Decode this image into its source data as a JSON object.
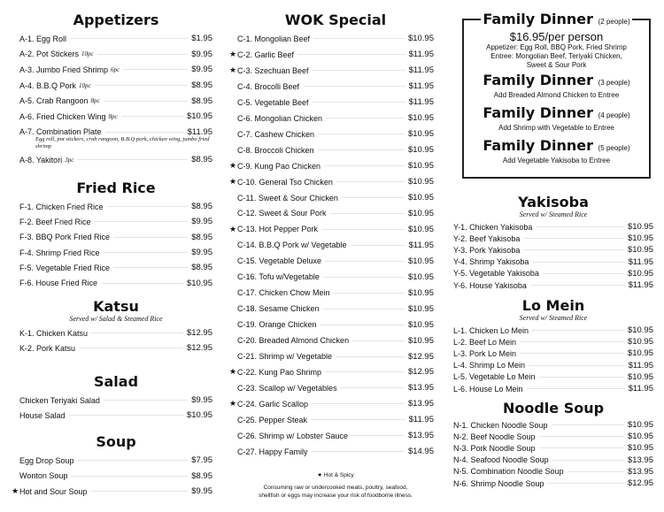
{
  "columns": [
    {
      "sections": [
        {
          "title": "Appetizers",
          "items": [
            {
              "name": "A-1. Egg Roll",
              "price": "$1.95"
            },
            {
              "name": "A-2. Pot Stickers",
              "note": "10pc",
              "price": "$9.95"
            },
            {
              "name": "A-3. Jumbo Fried Shrimp",
              "note": "6pc",
              "price": "$9.95"
            },
            {
              "name": "A-4. B.B.Q Pork",
              "note": "10pc",
              "price": "$8.95"
            },
            {
              "name": "A-5. Crab Rangoon",
              "note": "8pc",
              "price": "$8.95"
            },
            {
              "name": "A-6. Fried Chicken Wing",
              "note": "8pc",
              "price": "$10.95"
            },
            {
              "name": "A-7. Combination Plate",
              "price": "$11.95",
              "desc": "Egg roll, pot stickers, crab rangoon, B.B.Q pork, chicken wing, jumbo fried shrimp"
            },
            {
              "name": "A-8. Yakitori",
              "note": "3pc",
              "price": "$8.95"
            }
          ]
        },
        {
          "title": "Fried Rice",
          "items": [
            {
              "name": "F-1. Chicken Fried Rice",
              "price": "$8.95"
            },
            {
              "name": "F-2. Beef Fried Rice",
              "price": "$9.95"
            },
            {
              "name": "F-3. BBQ Pork Fried Rice",
              "price": "$8.95"
            },
            {
              "name": "F-4. Shrimp Fried Rice",
              "price": "$9.95"
            },
            {
              "name": "F-5. Vegetable Fried Rice",
              "price": "$8.95"
            },
            {
              "name": "F-6. House Fried Rice",
              "price": "$10.95"
            }
          ]
        },
        {
          "title": "Katsu",
          "subtitle": "Served w/ Salad & Steamed Rice",
          "items": [
            {
              "name": "K-1. Chicken Katsu",
              "price": "$12.95"
            },
            {
              "name": "K-2. Pork Katsu",
              "price": "$12.95"
            }
          ]
        },
        {
          "title": "Salad",
          "items": [
            {
              "name": "Chicken Teriyaki Salad",
              "price": "$9.95"
            },
            {
              "name": "House Salad",
              "price": "$10.95"
            }
          ]
        },
        {
          "title": "Soup",
          "items": [
            {
              "name": "Egg Drop Soup",
              "price": "$7.95"
            },
            {
              "name": "Wonton Soup",
              "price": "$8.95"
            },
            {
              "name": "Hot and Sour Soup",
              "price": "$9.95",
              "hot": true
            }
          ]
        }
      ]
    },
    {
      "sections": [
        {
          "title": "WOK Special",
          "items": [
            {
              "name": "C-1. Mongolian Beef",
              "price": "$10.95"
            },
            {
              "name": "C-2. Garlic Beef",
              "price": "$11.95",
              "hot": true
            },
            {
              "name": "C-3. Szechuan Beef",
              "price": "$11.95",
              "hot": true
            },
            {
              "name": "C-4. Brocolli Beef",
              "price": "$11.95"
            },
            {
              "name": "C-5. Vegetable Beef",
              "price": "$11.95"
            },
            {
              "name": "C-6. Mongolian Chicken",
              "price": "$10.95"
            },
            {
              "name": "C-7. Cashew Chicken",
              "price": "$10.95"
            },
            {
              "name": "C-8. Broccoli Chicken",
              "price": "$10.95"
            },
            {
              "name": "C-9. Kung Pao Chicken",
              "price": "$10.95",
              "hot": true
            },
            {
              "name": "C-10. General Tso Chicken",
              "price": "$10.95",
              "hot": true
            },
            {
              "name": "C-11. Sweet & Sour Chicken",
              "price": "$10.95"
            },
            {
              "name": "C-12. Sweet & Sour Pork",
              "price": "$10.95"
            },
            {
              "name": "C-13. Hot Pepper Pork",
              "price": "$10.95",
              "hot": true
            },
            {
              "name": "C-14. B.B.Q Pork w/ Vegetable",
              "price": "$11.95"
            },
            {
              "name": "C-15. Vegetable Deluxe",
              "price": "$10.95"
            },
            {
              "name": "C-16. Tofu w/Vegetable",
              "price": "$10.95"
            },
            {
              "name": "C-17. Chicken Chow Mein",
              "price": "$10.95"
            },
            {
              "name": "C-18. Sesame Chicken",
              "price": "$10.95"
            },
            {
              "name": "C-19. Orange Chicken",
              "price": "$10.95"
            },
            {
              "name": "C-20. Breaded Almond Chicken",
              "price": "$10.95"
            },
            {
              "name": "C-21. Shrimp w/ Vegetable",
              "price": "$12.95"
            },
            {
              "name": "C-22. Kung Pao Shrimp",
              "price": "$12.95",
              "hot": true
            },
            {
              "name": "C-23. Scallop w/ Vegetables",
              "price": "$13.95"
            },
            {
              "name": "C-24. Garlic Scallop",
              "price": "$13.95",
              "hot": true
            },
            {
              "name": "C-25. Pepper Steak",
              "price": "$11.95"
            },
            {
              "name": "C-26. Shrimp w/ Lobster Sauce",
              "price": "$13.95"
            },
            {
              "name": "C-27. Happy Family",
              "price": "$14.95"
            }
          ]
        }
      ]
    },
    {
      "sections": [
        {
          "title": "Yakisoba",
          "subtitle": "Served w/ Steamed Rice",
          "items": [
            {
              "name": "Y-1. Chicken Yakisoba",
              "price": "$10.95"
            },
            {
              "name": "Y-2. Beef Yakisoba",
              "price": "$10.95"
            },
            {
              "name": "Y-3. Pork Yakisoba",
              "price": "$10.95"
            },
            {
              "name": "Y-4. Shrimp Yakisoba",
              "price": "$11.95"
            },
            {
              "name": "Y-5. Vegetable Yakisoba",
              "price": "$10.95"
            },
            {
              "name": "Y-6. House Yakisoba",
              "price": "$11.95"
            }
          ]
        },
        {
          "title": "Lo Mein",
          "subtitle": "Served w/ Steamed Rice",
          "items": [
            {
              "name": "L-1. Chicken Lo Mein",
              "price": "$10.95"
            },
            {
              "name": "L-2. Beef Lo Mein",
              "price": "$10.95"
            },
            {
              "name": "L-3. Pork Lo Mein",
              "price": "$10.95"
            },
            {
              "name": "L-4. Shrimp Lo Mein",
              "price": "$11.95"
            },
            {
              "name": "L-5. Vegetable Lo Mein",
              "price": "$10.95"
            },
            {
              "name": "L-6. House Lo Mein",
              "price": "$11.95"
            }
          ]
        },
        {
          "title": "Noodle Soup",
          "items": [
            {
              "name": "N-1. Chicken Noodle Soup",
              "price": "$10.95"
            },
            {
              "name": "N-2. Beef Noodle Soup",
              "price": "$10.95"
            },
            {
              "name": "N-3. Pork Noodle Soup",
              "price": "$10.95"
            },
            {
              "name": "N-4. Seafood Noodle Soup",
              "price": "$13.95"
            },
            {
              "name": "N-5. Combination Noodle Soup",
              "price": "$13.95"
            },
            {
              "name": "N-6. Shrimp Noodle Soup",
              "price": "$12.95"
            }
          ]
        }
      ]
    }
  ],
  "family": {
    "title": "Family Dinner",
    "price": "$16.95/per person",
    "options": [
      {
        "people": "(2 people)",
        "lines": [
          "Appetizer: Egg Roll, BBQ Pork, Fried Shrimp",
          "Entree: Mongolian Beef, Teriyaki Chicken,",
          "Sweet & Sour Pork"
        ]
      },
      {
        "people": "(3 people)",
        "lines": [
          "Add Breaded Almond Chicken to Entree"
        ]
      },
      {
        "people": "(4 people)",
        "lines": [
          "Add Shrimp with Vegetable to Entree"
        ]
      },
      {
        "people": "(5 people)",
        "lines": [
          "Add Vegetable Yakisoba to Entree"
        ]
      }
    ]
  },
  "footer": {
    "legend": "★ Hot & Spicy",
    "warning": "Consuming raw or undercooked meats, poultry, seafood, shellfish or eggs may increase your risk of foodborne illness."
  },
  "hot_marker": "★"
}
